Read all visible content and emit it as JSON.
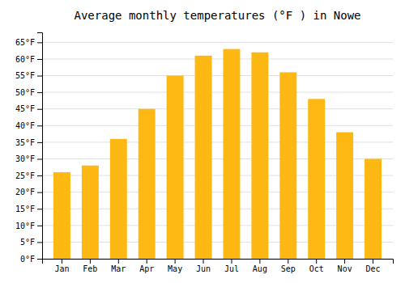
{
  "chart_data": {
    "type": "bar",
    "title": "Average monthly temperatures (°F ) in Nowe",
    "categories": [
      "Jan",
      "Feb",
      "Mar",
      "Apr",
      "May",
      "Jun",
      "Jul",
      "Aug",
      "Sep",
      "Oct",
      "Nov",
      "Dec"
    ],
    "values": [
      26,
      28,
      36,
      45,
      55,
      61,
      63,
      62,
      56,
      48,
      38,
      30
    ],
    "color": "#FDB813",
    "ylim": [
      0,
      68
    ],
    "yticks": [
      {
        "value": 0,
        "label": "0°F"
      },
      {
        "value": 5,
        "label": "5°F"
      },
      {
        "value": 10,
        "label": "10°F"
      },
      {
        "value": 15,
        "label": "15°F"
      },
      {
        "value": 20,
        "label": "20°F"
      },
      {
        "value": 25,
        "label": "25°F"
      },
      {
        "value": 30,
        "label": "30°F"
      },
      {
        "value": 35,
        "label": "35°F"
      },
      {
        "value": 40,
        "label": "40°F"
      },
      {
        "value": 45,
        "label": "45°F"
      },
      {
        "value": 50,
        "label": "50°F"
      },
      {
        "value": 55,
        "label": "55°F"
      },
      {
        "value": 60,
        "label": "60°F"
      },
      {
        "value": 65,
        "label": "65°F"
      }
    ],
    "grid": true
  }
}
